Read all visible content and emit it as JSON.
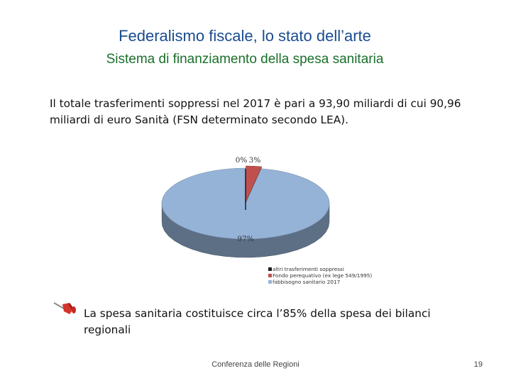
{
  "slide": {
    "title": "Federalismo fiscale, lo stato dell’arte",
    "subtitle": "Sistema di finanziamento della spesa sanitaria",
    "intro": "Il totale trasferimenti soppressi nel 2017 è pari a 93,90 miliardi di cui 90,96 miliardi di euro Sanità (FSN determinato secondo LEA).",
    "bullet_text": "La spesa sanitaria costituisce circa l’85% della spesa dei bilanci regionali",
    "bullet_icon": "pushpin-icon",
    "footer": "Conferenza delle Regioni",
    "page_number": "19"
  },
  "chart_data": {
    "type": "pie",
    "title": "",
    "style": "3d",
    "categories": [
      "altri trasferimenti soppressi",
      "Fondo perequativo (ex lege 549/1995)",
      "fabbisogno sanitario 2017"
    ],
    "values": [
      0,
      3,
      97
    ],
    "data_labels": [
      "0%",
      "3%",
      "97%"
    ],
    "colors": [
      "#1f1f1f",
      "#c0504d",
      "#95b3d7"
    ],
    "legend_position": "bottom-right"
  }
}
